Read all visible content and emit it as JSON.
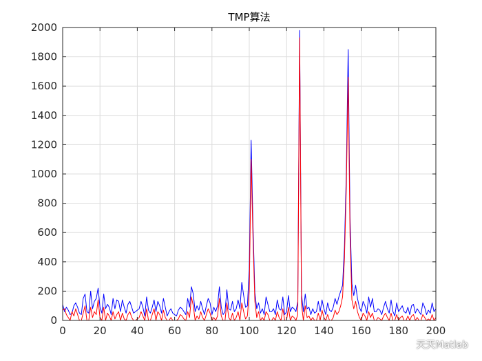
{
  "chart_data": {
    "type": "line",
    "title": "TMP算法",
    "xlabel": "",
    "ylabel": "",
    "xlim": [
      0,
      200
    ],
    "ylim": [
      0,
      2000
    ],
    "xticks": [
      0,
      20,
      40,
      60,
      80,
      100,
      120,
      140,
      160,
      180,
      200
    ],
    "yticks": [
      0,
      200,
      400,
      600,
      800,
      1000,
      1200,
      1400,
      1600,
      1800,
      2000
    ],
    "grid": true,
    "series": [
      {
        "color": "#0000ff",
        "x": [
          0,
          1,
          2,
          3,
          4,
          5,
          6,
          7,
          8,
          9,
          10,
          11,
          12,
          13,
          14,
          15,
          16,
          17,
          18,
          19,
          20,
          21,
          22,
          23,
          24,
          25,
          26,
          27,
          28,
          29,
          30,
          31,
          32,
          33,
          34,
          35,
          36,
          37,
          38,
          39,
          40,
          41,
          42,
          43,
          44,
          45,
          46,
          47,
          48,
          49,
          50,
          51,
          52,
          53,
          54,
          55,
          56,
          57,
          58,
          59,
          60,
          61,
          62,
          63,
          64,
          65,
          66,
          67,
          68,
          69,
          70,
          71,
          72,
          73,
          74,
          75,
          76,
          77,
          78,
          79,
          80,
          81,
          82,
          83,
          84,
          85,
          86,
          87,
          88,
          89,
          90,
          91,
          92,
          93,
          94,
          95,
          96,
          97,
          98,
          99,
          100,
          101,
          102,
          103,
          104,
          105,
          106,
          107,
          108,
          109,
          110,
          111,
          112,
          113,
          114,
          115,
          116,
          117,
          118,
          119,
          120,
          121,
          122,
          123,
          124,
          125,
          126,
          127,
          128,
          129,
          130,
          131,
          132,
          133,
          134,
          135,
          136,
          137,
          138,
          139,
          140,
          141,
          142,
          143,
          144,
          145,
          146,
          147,
          148,
          149,
          150,
          151,
          152,
          153,
          154,
          155,
          156,
          157,
          158,
          159,
          160,
          161,
          162,
          163,
          164,
          165,
          166,
          167,
          168,
          169,
          170,
          171,
          172,
          173,
          174,
          175,
          176,
          177,
          178,
          179,
          180,
          181,
          182,
          183,
          184,
          185,
          186,
          187,
          188,
          189,
          190,
          191,
          192,
          193,
          194,
          195,
          196,
          197,
          198,
          199,
          200
        ],
        "y": [
          110,
          60,
          90,
          70,
          40,
          50,
          100,
          120,
          90,
          50,
          40,
          150,
          180,
          60,
          50,
          200,
          80,
          130,
          150,
          220,
          90,
          50,
          180,
          80,
          110,
          90,
          40,
          150,
          80,
          140,
          130,
          60,
          140,
          90,
          50,
          110,
          130,
          90,
          50,
          60,
          70,
          80,
          130,
          90,
          30,
          160,
          70,
          50,
          90,
          140,
          60,
          130,
          100,
          50,
          150,
          90,
          30,
          60,
          80,
          50,
          40,
          30,
          70,
          90,
          80,
          60,
          40,
          150,
          90,
          230,
          180,
          60,
          100,
          70,
          130,
          80,
          40,
          100,
          150,
          120,
          40,
          90,
          60,
          100,
          230,
          90,
          40,
          60,
          210,
          80,
          70,
          130,
          60,
          80,
          140,
          80,
          260,
          170,
          90,
          100,
          350,
          1230,
          650,
          190,
          80,
          120,
          50,
          80,
          40,
          160,
          110,
          60,
          60,
          80,
          40,
          140,
          80,
          70,
          160,
          40,
          60,
          170,
          60,
          90,
          80,
          60,
          130,
          1980,
          180,
          60,
          180,
          80,
          90,
          40,
          80,
          50,
          60,
          130,
          60,
          140,
          80,
          40,
          120,
          70,
          60,
          90,
          150,
          110,
          160,
          200,
          240,
          500,
          1000,
          1850,
          700,
          250,
          170,
          240,
          150,
          90,
          60,
          130,
          100,
          50,
          160,
          90,
          150,
          60,
          60,
          80,
          70,
          40,
          90,
          130,
          80,
          50,
          140,
          60,
          30,
          120,
          60,
          80,
          100,
          60,
          50,
          90,
          40,
          100,
          110,
          50,
          80,
          60,
          40,
          120,
          90,
          40,
          70,
          50,
          120,
          60,
          80
        ]
      },
      {
        "color": "#ff0000",
        "x": [
          0,
          1,
          2,
          3,
          4,
          5,
          6,
          7,
          8,
          9,
          10,
          11,
          12,
          13,
          14,
          15,
          16,
          17,
          18,
          19,
          20,
          21,
          22,
          23,
          24,
          25,
          26,
          27,
          28,
          29,
          30,
          31,
          32,
          33,
          34,
          35,
          36,
          37,
          38,
          39,
          40,
          41,
          42,
          43,
          44,
          45,
          46,
          47,
          48,
          49,
          50,
          51,
          52,
          53,
          54,
          55,
          56,
          57,
          58,
          59,
          60,
          61,
          62,
          63,
          64,
          65,
          66,
          67,
          68,
          69,
          70,
          71,
          72,
          73,
          74,
          75,
          76,
          77,
          78,
          79,
          80,
          81,
          82,
          83,
          84,
          85,
          86,
          87,
          88,
          89,
          90,
          91,
          92,
          93,
          94,
          95,
          96,
          97,
          98,
          99,
          100,
          101,
          102,
          103,
          104,
          105,
          106,
          107,
          108,
          109,
          110,
          111,
          112,
          113,
          114,
          115,
          116,
          117,
          118,
          119,
          120,
          121,
          122,
          123,
          124,
          125,
          126,
          127,
          128,
          129,
          130,
          131,
          132,
          133,
          134,
          135,
          136,
          137,
          138,
          139,
          140,
          141,
          142,
          143,
          144,
          145,
          146,
          147,
          148,
          149,
          150,
          151,
          152,
          153,
          154,
          155,
          156,
          157,
          158,
          159,
          160,
          161,
          162,
          163,
          164,
          165,
          166,
          167,
          168,
          169,
          170,
          171,
          172,
          173,
          174,
          175,
          176,
          177,
          178,
          179,
          180,
          181,
          182,
          183,
          184,
          185,
          186,
          187,
          188,
          189,
          190,
          191,
          192,
          193,
          194,
          195,
          196,
          197,
          198,
          199,
          200
        ],
        "y": [
          70,
          80,
          40,
          20,
          0,
          60,
          30,
          80,
          40,
          0,
          0,
          50,
          100,
          0,
          0,
          90,
          20,
          60,
          40,
          140,
          20,
          0,
          90,
          0,
          50,
          30,
          0,
          60,
          10,
          40,
          60,
          0,
          50,
          10,
          0,
          40,
          60,
          20,
          0,
          0,
          10,
          20,
          60,
          30,
          0,
          80,
          0,
          0,
          40,
          80,
          0,
          60,
          40,
          0,
          70,
          20,
          0,
          0,
          20,
          0,
          0,
          0,
          10,
          40,
          30,
          10,
          0,
          60,
          20,
          160,
          100,
          0,
          30,
          10,
          60,
          20,
          0,
          40,
          80,
          50,
          0,
          20,
          0,
          30,
          150,
          30,
          0,
          0,
          120,
          20,
          0,
          50,
          0,
          20,
          60,
          0,
          120,
          60,
          10,
          30,
          200,
          1100,
          560,
          130,
          20,
          60,
          0,
          20,
          0,
          60,
          40,
          0,
          0,
          20,
          0,
          60,
          20,
          0,
          80,
          0,
          0,
          90,
          0,
          30,
          20,
          0,
          40,
          1930,
          110,
          0,
          100,
          20,
          30,
          0,
          20,
          0,
          0,
          50,
          0,
          70,
          20,
          0,
          40,
          0,
          0,
          20,
          70,
          40,
          60,
          100,
          160,
          420,
          900,
          1660,
          580,
          140,
          80,
          130,
          60,
          20,
          0,
          50,
          30,
          0,
          60,
          20,
          50,
          0,
          0,
          20,
          10,
          0,
          30,
          50,
          20,
          0,
          50,
          0,
          0,
          40,
          0,
          20,
          30,
          0,
          0,
          30,
          0,
          30,
          40,
          0,
          20,
          0,
          0,
          40,
          20,
          0,
          10,
          0,
          40,
          0,
          20
        ]
      }
    ]
  },
  "watermark": {
    "text": "天天Matlab",
    "icon": "wechat-icon"
  }
}
